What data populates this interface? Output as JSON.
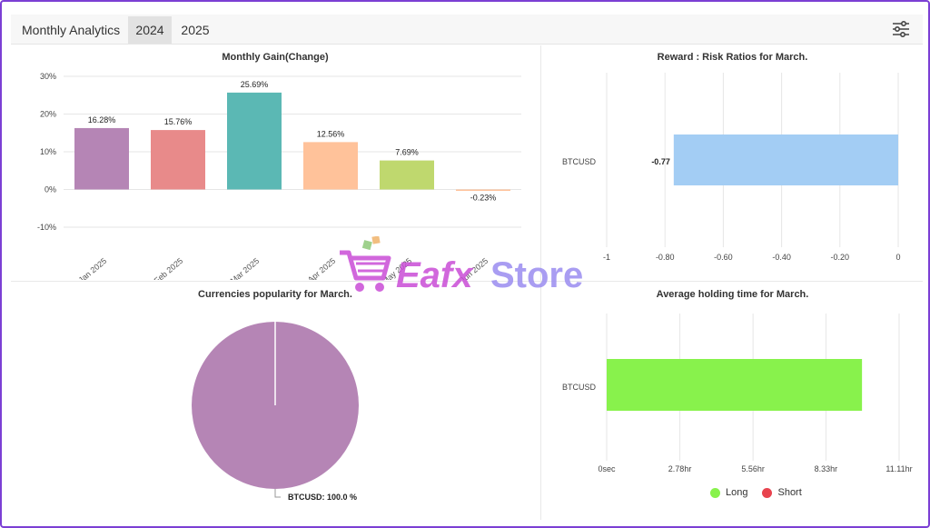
{
  "header": {
    "title": "Monthly Analytics",
    "tabs": [
      {
        "label": "2024",
        "active": true
      },
      {
        "label": "2025",
        "active": false
      }
    ]
  },
  "watermark": {
    "text_a": "Eafx",
    "text_b": "Store"
  },
  "chart_data": [
    {
      "id": "monthly-gain",
      "type": "bar",
      "title": "Monthly Gain(Change)",
      "categories": [
        "Jan 2025",
        "Feb 2025",
        "Mar 2025",
        "Apr 2025",
        "May 2025",
        "Jun 2025"
      ],
      "values": [
        16.28,
        15.76,
        25.69,
        12.56,
        7.69,
        -0.23
      ],
      "data_labels": [
        "16.28%",
        "15.76%",
        "25.69%",
        "12.56%",
        "7.69%",
        "-0.23%"
      ],
      "colors": [
        "#b585b5",
        "#e88a8a",
        "#5bb8b4",
        "#ffc29a",
        "#bfd86e",
        "#ffc29a"
      ],
      "y_ticks": [
        30,
        20,
        10,
        0,
        -10
      ],
      "y_tick_labels": [
        "30%",
        "20%",
        "10%",
        "0%",
        "-10%"
      ],
      "ylim": [
        -10,
        30
      ],
      "grid": true
    },
    {
      "id": "reward-risk",
      "type": "bar",
      "orientation": "horizontal",
      "title": "Reward : Risk Ratios for March.",
      "categories": [
        "BTCUSD"
      ],
      "values": [
        -0.77
      ],
      "data_labels": [
        "-0.77"
      ],
      "color": "#a3cdf4",
      "x_ticks": [
        -1,
        -0.8,
        -0.6,
        -0.4,
        -0.2,
        0
      ],
      "x_tick_labels": [
        "-1",
        "-0.80",
        "-0.60",
        "-0.40",
        "-0.20",
        "0"
      ],
      "xlim": [
        -1,
        0
      ],
      "grid": true
    },
    {
      "id": "currencies-popularity",
      "type": "pie",
      "title": "Currencies popularity for March.",
      "slices": [
        {
          "label": "BTCUSD",
          "value": 100.0
        }
      ],
      "data_labels": [
        "BTCUSD: 100.0 %"
      ],
      "color": "#b585b5"
    },
    {
      "id": "holding-time",
      "type": "bar",
      "orientation": "horizontal",
      "title": "Average holding time for March.",
      "categories": [
        "BTCUSD"
      ],
      "series": [
        {
          "name": "Long",
          "values": [
            9.7
          ],
          "color": "#88f24c"
        },
        {
          "name": "Short",
          "values": [
            0
          ],
          "color": "#e8434e"
        }
      ],
      "x_ticks": [
        0,
        2.78,
        5.56,
        8.33,
        11.11
      ],
      "x_tick_labels": [
        "0sec",
        "2.78hr",
        "5.56hr",
        "8.33hr",
        "11.11hr"
      ],
      "xlim": [
        0,
        11.11
      ],
      "legend": "bottom",
      "grid": true
    }
  ]
}
